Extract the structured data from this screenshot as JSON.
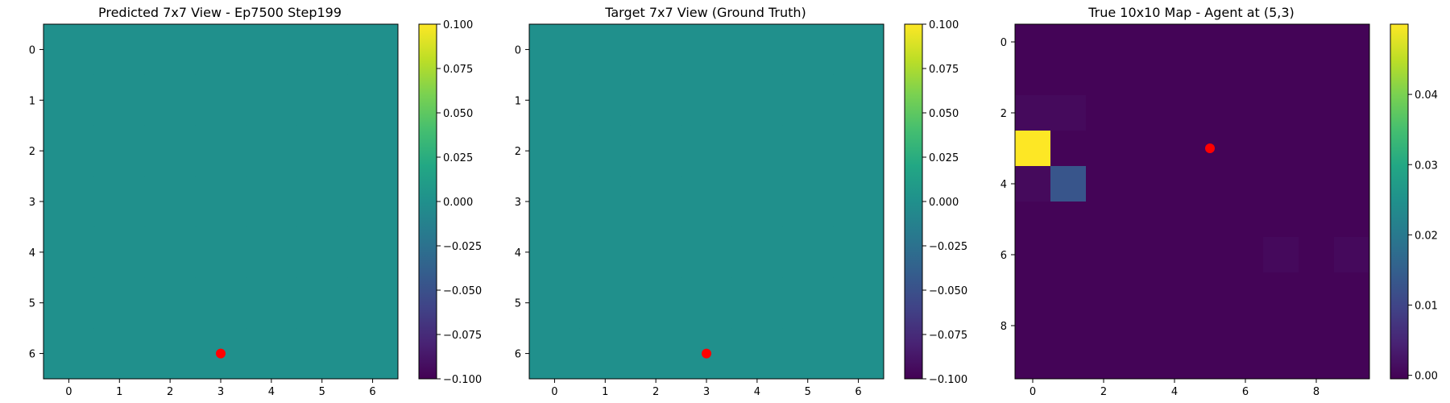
{
  "chart_data": [
    {
      "type": "heatmap",
      "title": "Predicted 7x7 View - Ep7500 Step199",
      "grid_size": 7,
      "xticks": [
        0,
        1,
        2,
        3,
        4,
        5,
        6
      ],
      "yticks": [
        0,
        1,
        2,
        3,
        4,
        5,
        6
      ],
      "values": [
        [
          0,
          0,
          0,
          0,
          0,
          0,
          0
        ],
        [
          0,
          0,
          0,
          0,
          0,
          0,
          0
        ],
        [
          0,
          0,
          0,
          0,
          0,
          0,
          0
        ],
        [
          0,
          0,
          0,
          0,
          0,
          0,
          0
        ],
        [
          0,
          0,
          0,
          0,
          0,
          0,
          0
        ],
        [
          0,
          0,
          0,
          0,
          0,
          0,
          0
        ],
        [
          0,
          0,
          0,
          0,
          0,
          0,
          0
        ]
      ],
      "marker": {
        "x": 3,
        "y": 6,
        "color": "#ff0000"
      },
      "colorbar": {
        "vmin": -0.1,
        "vmax": 0.1,
        "ticks": [
          "0.100",
          "0.075",
          "0.050",
          "0.025",
          "0.000",
          "−0.025",
          "−0.050",
          "−0.075",
          "−0.100"
        ],
        "tick_values": [
          0.1,
          0.075,
          0.05,
          0.025,
          0.0,
          -0.025,
          -0.05,
          -0.075,
          -0.1
        ]
      },
      "colormap": "viridis"
    },
    {
      "type": "heatmap",
      "title": "Target 7x7 View (Ground Truth)",
      "grid_size": 7,
      "xticks": [
        0,
        1,
        2,
        3,
        4,
        5,
        6
      ],
      "yticks": [
        0,
        1,
        2,
        3,
        4,
        5,
        6
      ],
      "values": [
        [
          0,
          0,
          0,
          0,
          0,
          0,
          0
        ],
        [
          0,
          0,
          0,
          0,
          0,
          0,
          0
        ],
        [
          0,
          0,
          0,
          0,
          0,
          0,
          0
        ],
        [
          0,
          0,
          0,
          0,
          0,
          0,
          0
        ],
        [
          0,
          0,
          0,
          0,
          0,
          0,
          0
        ],
        [
          0,
          0,
          0,
          0,
          0,
          0,
          0
        ],
        [
          0,
          0,
          0,
          0,
          0,
          0,
          0
        ]
      ],
      "marker": {
        "x": 3,
        "y": 6,
        "color": "#ff0000"
      },
      "colorbar": {
        "vmin": -0.1,
        "vmax": 0.1,
        "ticks": [
          "0.100",
          "0.075",
          "0.050",
          "0.025",
          "0.000",
          "−0.025",
          "−0.050",
          "−0.075",
          "−0.100"
        ],
        "tick_values": [
          0.1,
          0.075,
          0.05,
          0.025,
          0.0,
          -0.025,
          -0.05,
          -0.075,
          -0.1
        ]
      },
      "colormap": "viridis"
    },
    {
      "type": "heatmap",
      "title": "True 10x10 Map - Agent at (5,3)",
      "grid_size": 10,
      "xticks": [
        0,
        2,
        4,
        6,
        8
      ],
      "yticks": [
        0,
        2,
        4,
        6,
        8
      ],
      "values": [
        [
          0,
          0,
          0,
          0,
          0,
          0,
          0,
          0,
          0,
          0
        ],
        [
          0,
          0,
          0,
          0,
          0,
          0,
          0,
          0,
          0,
          0
        ],
        [
          0.0008,
          0.0008,
          0,
          0,
          0,
          0,
          0,
          0,
          0,
          0
        ],
        [
          0.05,
          0,
          0,
          0,
          0,
          0,
          0,
          0,
          0,
          0
        ],
        [
          0.0008,
          0.013,
          0,
          0,
          0,
          0,
          0,
          0,
          0,
          0
        ],
        [
          0,
          0,
          0,
          0,
          0,
          0,
          0,
          0,
          0,
          0
        ],
        [
          0,
          0,
          0,
          0,
          0,
          0,
          0,
          0.0007,
          0,
          0.0007
        ],
        [
          0,
          0,
          0,
          0,
          0,
          0,
          0,
          0,
          0,
          0
        ],
        [
          0,
          0,
          0,
          0,
          0,
          0,
          0,
          0,
          0,
          0
        ],
        [
          0,
          0,
          0,
          0,
          0,
          0,
          0,
          0,
          0,
          0
        ]
      ],
      "marker": {
        "x": 5,
        "y": 3,
        "color": "#ff0000"
      },
      "colorbar": {
        "vmin": -0.0005,
        "vmax": 0.05,
        "ticks": [
          "0.04",
          "0.03",
          "0.02",
          "0.01",
          "0.00"
        ],
        "tick_values": [
          0.04,
          0.03,
          0.02,
          0.01,
          0.0
        ]
      },
      "colormap": "viridis"
    }
  ]
}
